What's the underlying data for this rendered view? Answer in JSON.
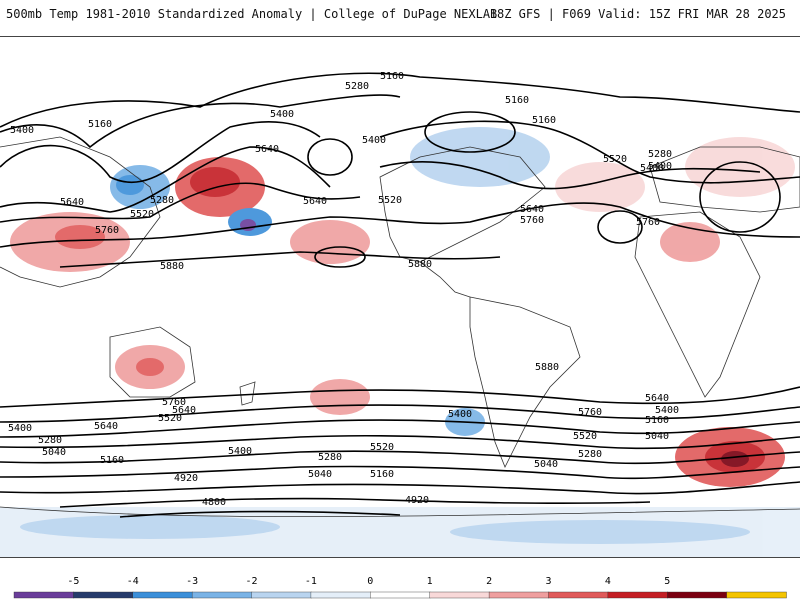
{
  "header": {
    "title": "500mb Temp 1981-2010 Standardized Anomaly | College of DuPage NEXLAB",
    "run_info": "18Z GFS | F069 Valid: 15Z FRI MAR 28 2025"
  },
  "colors": {
    "contour": "#000000",
    "land_border": "#222222",
    "ocean_bg": "#ffffff"
  },
  "colorbar": {
    "ticks": [
      "-5",
      "-4",
      "-3",
      "-2",
      "-1",
      "0",
      "1",
      "2",
      "3",
      "4",
      "5"
    ],
    "colors": [
      "#6a3d9a",
      "#263b6b",
      "#3b8fd9",
      "#7ab3e6",
      "#b9d4ef",
      "#e4eef8",
      "#ffffff",
      "#f8d8d8",
      "#ef9f9f",
      "#e05a5a",
      "#c41e24",
      "#7a0010",
      "#f4c400"
    ]
  },
  "contour_labels": [
    "5160",
    "5280",
    "5400",
    "5160",
    "5400",
    "5640",
    "5400",
    "5280",
    "5520",
    "5640",
    "5760",
    "5640",
    "5520",
    "5400",
    "5160",
    "5160",
    "5520",
    "5280",
    "5400",
    "5640",
    "5760",
    "5760",
    "5880",
    "5880",
    "5880",
    "5760",
    "5640",
    "5400",
    "5640",
    "5400",
    "5520",
    "5280",
    "5040",
    "5160",
    "5400",
    "5520",
    "5280",
    "5160",
    "5040",
    "4920",
    "4800",
    "4920",
    "5040",
    "5280",
    "5520",
    "5760",
    "5640",
    "5400",
    "5160",
    "5040"
  ]
}
